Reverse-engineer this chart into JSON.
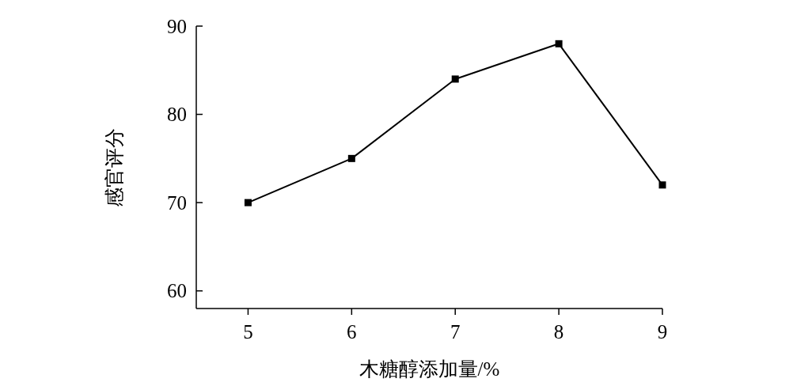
{
  "chart_data": {
    "type": "line",
    "xlabel": "木糖醇添加量/%",
    "ylabel": "感官评分",
    "x": [
      5,
      6,
      7,
      8,
      9
    ],
    "series": [
      {
        "color": "#000000",
        "values": [
          70,
          75,
          84,
          88,
          72
        ]
      }
    ],
    "xlim": [
      4.5,
      9
    ],
    "xticks": [
      5,
      6,
      7,
      8,
      9
    ],
    "ylim": [
      58,
      90
    ],
    "yticks": [
      60,
      70,
      80,
      90
    ],
    "marker": "square",
    "line_style": "solid"
  }
}
